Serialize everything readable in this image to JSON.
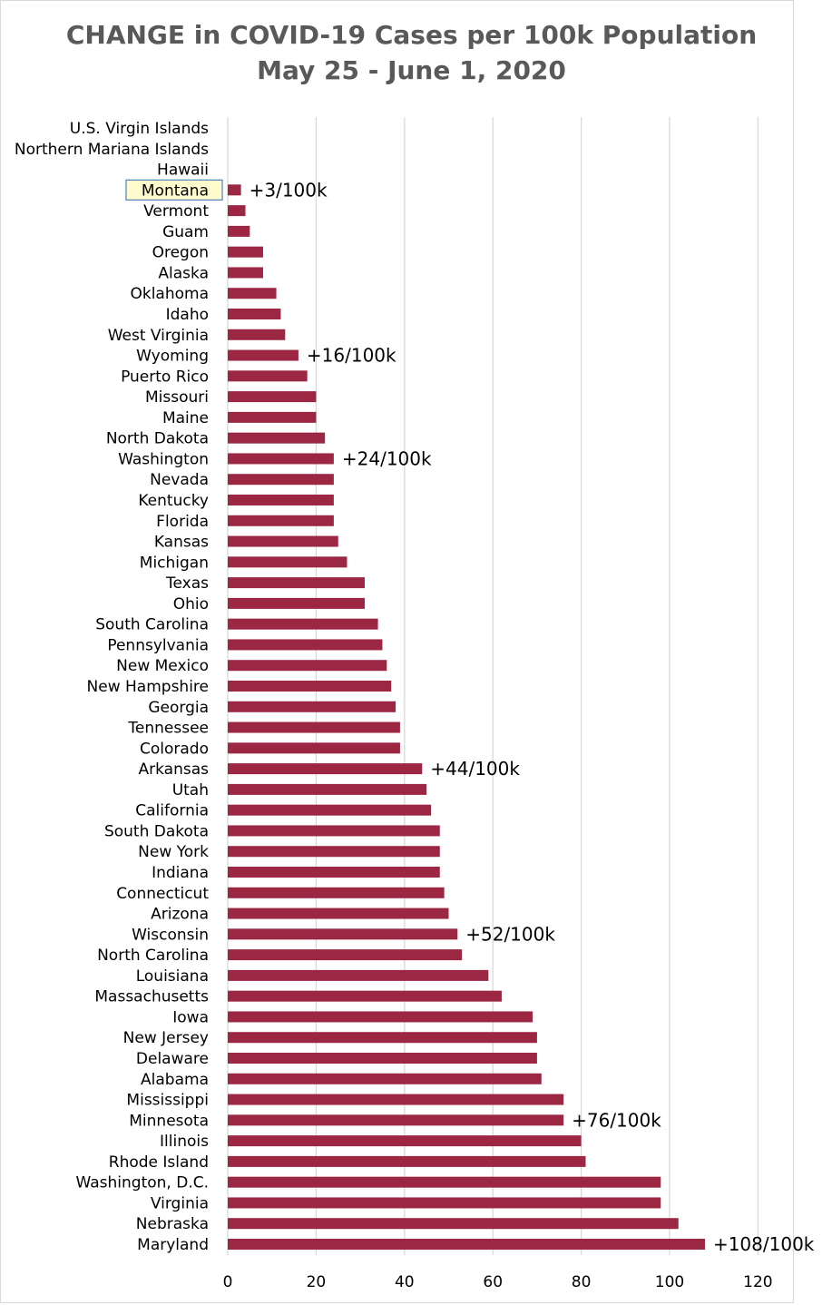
{
  "chart_data": {
    "type": "bar",
    "orientation": "horizontal",
    "title": "CHANGE in COVID-19 Cases per 100k Population",
    "subtitle": "May 25 - June 1, 2020",
    "xlim": [
      0,
      120
    ],
    "x_ticks": [
      0,
      20,
      40,
      60,
      80,
      100,
      120
    ],
    "grid": "vertical",
    "bar_color": "#9b2743",
    "categories": [
      "U.S. Virgin Islands",
      "Northern Mariana Islands",
      "Hawaii",
      "Montana",
      "Vermont",
      "Guam",
      "Oregon",
      "Alaska",
      "Oklahoma",
      "Idaho",
      "West Virginia",
      "Wyoming",
      "Puerto Rico",
      "Missouri",
      "Maine",
      "North Dakota",
      "Washington",
      "Nevada",
      "Kentucky",
      "Florida",
      "Kansas",
      "Michigan",
      "Texas",
      "Ohio",
      "South Carolina",
      "Pennsylvania",
      "New Mexico",
      "New Hampshire",
      "Georgia",
      "Tennessee",
      "Colorado",
      "Arkansas",
      "Utah",
      "California",
      "South Dakota",
      "New York",
      "Indiana",
      "Connecticut",
      "Arizona",
      "Wisconsin",
      "North Carolina",
      "Louisiana",
      "Massachusetts",
      "Iowa",
      "New Jersey",
      "Delaware",
      "Alabama",
      "Mississippi",
      "Minnesota",
      "Illinois",
      "Rhode Island",
      "Washington, D.C.",
      "Virginia",
      "Nebraska",
      "Maryland"
    ],
    "values": [
      0,
      0,
      0,
      3,
      4,
      5,
      8,
      8,
      11,
      12,
      13,
      16,
      18,
      20,
      20,
      22,
      24,
      24,
      24,
      24,
      25,
      27,
      31,
      31,
      34,
      35,
      36,
      37,
      38,
      39,
      39,
      44,
      45,
      46,
      48,
      48,
      48,
      49,
      50,
      52,
      53,
      59,
      62,
      69,
      70,
      70,
      71,
      76,
      76,
      80,
      81,
      98,
      98,
      102,
      108
    ],
    "highlighted_category": "Montana",
    "data_labels": [
      {
        "category": "Montana",
        "text": "+3/100k"
      },
      {
        "category": "Wyoming",
        "text": "+16/100k"
      },
      {
        "category": "Washington",
        "text": "+24/100k"
      },
      {
        "category": "Arkansas",
        "text": "+44/100k"
      },
      {
        "category": "Wisconsin",
        "text": "+52/100k"
      },
      {
        "category": "Minnesota",
        "text": "+76/100k"
      },
      {
        "category": "Maryland",
        "text": "+108/100k"
      }
    ]
  }
}
